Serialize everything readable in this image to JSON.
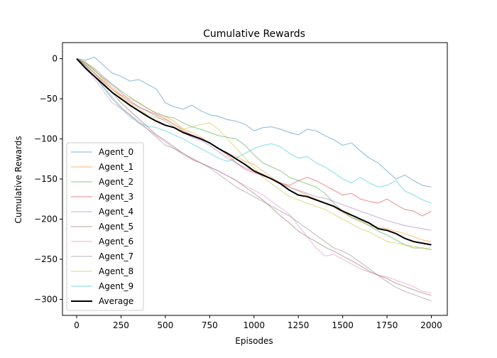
{
  "chart_data": {
    "type": "line",
    "title": "Cumulative Rewards",
    "xlabel": "Episodes",
    "ylabel": "Cumulative Rewards",
    "xlim": [
      -80,
      2090
    ],
    "ylim": [
      -320,
      20
    ],
    "xticks": [
      0,
      250,
      500,
      750,
      1000,
      1250,
      1500,
      1750,
      2000
    ],
    "yticks": [
      0,
      -50,
      -100,
      -150,
      -200,
      -250,
      -300
    ],
    "xtick_labels": [
      "0",
      "250",
      "500",
      "750",
      "1000",
      "1250",
      "1500",
      "1750",
      "2000"
    ],
    "ytick_labels": [
      "0",
      "−50",
      "−100",
      "−150",
      "−200",
      "−250",
      "−300"
    ],
    "legend_position": "lower-left",
    "grid": false,
    "series": [
      {
        "name": "Agent_0",
        "color": "#1f77b4",
        "x": [
          0,
          50,
          100,
          150,
          200,
          250,
          300,
          350,
          400,
          450,
          500,
          550,
          600,
          650,
          700,
          750,
          800,
          850,
          900,
          950,
          1000,
          1050,
          1100,
          1150,
          1200,
          1250,
          1300,
          1350,
          1400,
          1450,
          1500,
          1550,
          1600,
          1650,
          1700,
          1750,
          1800,
          1850,
          1900,
          1950,
          2000
        ],
        "y": [
          0,
          -2,
          2,
          -8,
          -18,
          -22,
          -28,
          -26,
          -32,
          -38,
          -55,
          -60,
          -63,
          -58,
          -65,
          -70,
          -72,
          -76,
          -78,
          -82,
          -90,
          -86,
          -85,
          -88,
          -92,
          -95,
          -88,
          -90,
          -96,
          -101,
          -108,
          -105,
          -115,
          -124,
          -130,
          -140,
          -150,
          -145,
          -152,
          -158,
          -160
        ]
      },
      {
        "name": "Agent_1",
        "color": "#ff7f0e",
        "x": [
          0,
          50,
          100,
          150,
          200,
          250,
          300,
          350,
          400,
          450,
          500,
          550,
          600,
          650,
          700,
          750,
          800,
          850,
          900,
          950,
          1000,
          1050,
          1100,
          1150,
          1200,
          1250,
          1300,
          1350,
          1400,
          1450,
          1500,
          1550,
          1600,
          1650,
          1700,
          1750,
          1800,
          1850,
          1900,
          1950,
          2000
        ],
        "y": [
          0,
          -5,
          -14,
          -25,
          -35,
          -45,
          -50,
          -55,
          -62,
          -68,
          -72,
          -78,
          -88,
          -92,
          -98,
          -105,
          -112,
          -118,
          -122,
          -128,
          -132,
          -140,
          -148,
          -155,
          -160,
          -165,
          -170,
          -175,
          -180,
          -185,
          -192,
          -198,
          -203,
          -208,
          -210,
          -212,
          -215,
          -218,
          -222,
          -226,
          -228
        ]
      },
      {
        "name": "Agent_2",
        "color": "#2ca02c",
        "x": [
          0,
          50,
          100,
          150,
          200,
          250,
          300,
          350,
          400,
          450,
          500,
          550,
          600,
          650,
          700,
          750,
          800,
          850,
          900,
          950,
          1000,
          1050,
          1100,
          1150,
          1200,
          1250,
          1300,
          1350,
          1400,
          1450,
          1500,
          1550,
          1600,
          1650,
          1700,
          1750,
          1800,
          1850,
          1900,
          1950,
          2000
        ],
        "y": [
          0,
          -6,
          -15,
          -24,
          -32,
          -40,
          -48,
          -55,
          -62,
          -68,
          -72,
          -74,
          -80,
          -85,
          -88,
          -92,
          -96,
          -98,
          -100,
          -108,
          -120,
          -130,
          -135,
          -140,
          -148,
          -152,
          -156,
          -160,
          -168,
          -180,
          -190,
          -198,
          -202,
          -208,
          -215,
          -220,
          -226,
          -232,
          -236,
          -236,
          -238
        ]
      },
      {
        "name": "Agent_3",
        "color": "#d62728",
        "x": [
          0,
          50,
          100,
          150,
          200,
          250,
          300,
          350,
          400,
          450,
          500,
          550,
          600,
          650,
          700,
          750,
          800,
          850,
          900,
          950,
          1000,
          1050,
          1100,
          1150,
          1200,
          1250,
          1300,
          1350,
          1400,
          1450,
          1500,
          1550,
          1600,
          1650,
          1700,
          1750,
          1800,
          1850,
          1900,
          1950,
          2000
        ],
        "y": [
          0,
          -8,
          -18,
          -28,
          -38,
          -46,
          -54,
          -60,
          -65,
          -70,
          -75,
          -82,
          -90,
          -95,
          -100,
          -105,
          -112,
          -120,
          -130,
          -138,
          -142,
          -146,
          -150,
          -155,
          -158,
          -152,
          -148,
          -152,
          -158,
          -164,
          -170,
          -168,
          -175,
          -178,
          -180,
          -175,
          -182,
          -188,
          -190,
          -196,
          -190
        ]
      },
      {
        "name": "Agent_4",
        "color": "#9467bd",
        "x": [
          0,
          50,
          100,
          150,
          200,
          250,
          300,
          350,
          400,
          450,
          500,
          550,
          600,
          650,
          700,
          750,
          800,
          850,
          900,
          950,
          1000,
          1050,
          1100,
          1150,
          1200,
          1250,
          1300,
          1350,
          1400,
          1450,
          1500,
          1550,
          1600,
          1650,
          1700,
          1750,
          1800,
          1850,
          1900,
          1950,
          2000
        ],
        "y": [
          0,
          -5,
          -12,
          -22,
          -32,
          -42,
          -52,
          -60,
          -66,
          -72,
          -78,
          -85,
          -92,
          -98,
          -102,
          -108,
          -116,
          -124,
          -130,
          -136,
          -140,
          -144,
          -150,
          -156,
          -160,
          -164,
          -168,
          -172,
          -174,
          -178,
          -182,
          -186,
          -190,
          -194,
          -198,
          -202,
          -205,
          -208,
          -210,
          -212,
          -214
        ]
      },
      {
        "name": "Agent_5",
        "color": "#8c564b",
        "x": [
          0,
          50,
          100,
          150,
          200,
          250,
          300,
          350,
          400,
          450,
          500,
          550,
          600,
          650,
          700,
          750,
          800,
          850,
          900,
          950,
          1000,
          1050,
          1100,
          1150,
          1200,
          1250,
          1300,
          1350,
          1400,
          1450,
          1500,
          1550,
          1600,
          1650,
          1700,
          1750,
          1800,
          1850,
          1900,
          1950,
          2000
        ],
        "y": [
          0,
          -8,
          -18,
          -30,
          -42,
          -55,
          -65,
          -75,
          -85,
          -95,
          -102,
          -110,
          -118,
          -125,
          -130,
          -135,
          -140,
          -146,
          -152,
          -160,
          -168,
          -176,
          -186,
          -196,
          -205,
          -215,
          -222,
          -228,
          -235,
          -240,
          -246,
          -252,
          -258,
          -265,
          -270,
          -274,
          -280,
          -284,
          -288,
          -292,
          -295
        ]
      },
      {
        "name": "Agent_6",
        "color": "#e377c2",
        "x": [
          0,
          50,
          100,
          150,
          200,
          250,
          300,
          350,
          400,
          450,
          500,
          550,
          600,
          650,
          700,
          750,
          800,
          850,
          900,
          950,
          1000,
          1050,
          1100,
          1150,
          1200,
          1250,
          1300,
          1350,
          1400,
          1450,
          1500,
          1550,
          1600,
          1650,
          1700,
          1750,
          1800,
          1850,
          1900,
          1950,
          2000
        ],
        "y": [
          0,
          -12,
          -25,
          -40,
          -55,
          -62,
          -70,
          -78,
          -88,
          -96,
          -104,
          -112,
          -120,
          -126,
          -130,
          -135,
          -140,
          -146,
          -152,
          -158,
          -164,
          -170,
          -178,
          -186,
          -194,
          -208,
          -222,
          -236,
          -246,
          -244,
          -250,
          -256,
          -262,
          -266,
          -270,
          -272,
          -276,
          -280,
          -284,
          -290,
          -292
        ]
      },
      {
        "name": "Agent_7",
        "color": "#7f7f7f",
        "x": [
          0,
          50,
          100,
          150,
          200,
          250,
          300,
          350,
          400,
          450,
          500,
          550,
          600,
          650,
          700,
          750,
          800,
          850,
          900,
          950,
          1000,
          1050,
          1100,
          1150,
          1200,
          1250,
          1300,
          1350,
          1400,
          1450,
          1500,
          1550,
          1600,
          1650,
          1700,
          1750,
          1800,
          1850,
          1900,
          1950,
          2000
        ],
        "y": [
          0,
          -10,
          -22,
          -35,
          -48,
          -60,
          -70,
          -80,
          -88,
          -98,
          -108,
          -112,
          -118,
          -124,
          -130,
          -136,
          -144,
          -152,
          -160,
          -166,
          -172,
          -178,
          -184,
          -190,
          -196,
          -204,
          -212,
          -220,
          -228,
          -236,
          -240,
          -246,
          -254,
          -262,
          -270,
          -278,
          -285,
          -290,
          -294,
          -298,
          -302
        ]
      },
      {
        "name": "Agent_8",
        "color": "#bcbd22",
        "x": [
          0,
          50,
          100,
          150,
          200,
          250,
          300,
          350,
          400,
          450,
          500,
          550,
          600,
          650,
          700,
          750,
          800,
          850,
          900,
          950,
          1000,
          1050,
          1100,
          1150,
          1200,
          1250,
          1300,
          1350,
          1400,
          1450,
          1500,
          1550,
          1600,
          1650,
          1700,
          1750,
          1800,
          1850,
          1900,
          1950,
          2000
        ],
        "y": [
          0,
          -4,
          -14,
          -26,
          -38,
          -48,
          -56,
          -62,
          -70,
          -74,
          -76,
          -82,
          -88,
          -85,
          -82,
          -80,
          -88,
          -100,
          -112,
          -124,
          -136,
          -148,
          -156,
          -164,
          -172,
          -176,
          -180,
          -184,
          -188,
          -194,
          -200,
          -206,
          -212,
          -216,
          -222,
          -228,
          -230,
          -232,
          -234,
          -236,
          -238
        ]
      },
      {
        "name": "Agent_9",
        "color": "#17becf",
        "x": [
          0,
          50,
          100,
          150,
          200,
          250,
          300,
          350,
          400,
          450,
          500,
          550,
          600,
          650,
          700,
          750,
          800,
          850,
          900,
          950,
          1000,
          1050,
          1100,
          1150,
          1200,
          1250,
          1300,
          1350,
          1400,
          1450,
          1500,
          1550,
          1600,
          1650,
          1700,
          1750,
          1800,
          1850,
          1900,
          1950,
          2000
        ],
        "y": [
          0,
          -10,
          -22,
          -36,
          -50,
          -62,
          -72,
          -80,
          -84,
          -86,
          -90,
          -95,
          -100,
          -106,
          -112,
          -118,
          -124,
          -128,
          -124,
          -118,
          -112,
          -108,
          -106,
          -110,
          -118,
          -124,
          -122,
          -130,
          -135,
          -142,
          -150,
          -155,
          -148,
          -155,
          -160,
          -158,
          -152,
          -165,
          -170,
          -176,
          -180
        ]
      }
    ],
    "average": {
      "name": "Average",
      "color": "#000000",
      "x": [
        0,
        50,
        100,
        150,
        200,
        250,
        300,
        350,
        400,
        450,
        500,
        550,
        600,
        650,
        700,
        750,
        800,
        850,
        900,
        950,
        1000,
        1050,
        1100,
        1150,
        1200,
        1250,
        1300,
        1350,
        1400,
        1450,
        1500,
        1550,
        1600,
        1650,
        1700,
        1750,
        1800,
        1850,
        1900,
        1950,
        2000
      ],
      "y": [
        0,
        -12,
        -22,
        -32,
        -42,
        -50,
        -58,
        -65,
        -72,
        -78,
        -83,
        -86,
        -92,
        -96,
        -100,
        -105,
        -112,
        -118,
        -125,
        -132,
        -140,
        -145,
        -150,
        -156,
        -164,
        -170,
        -172,
        -176,
        -180,
        -184,
        -190,
        -195,
        -200,
        -205,
        -212,
        -214,
        -218,
        -224,
        -228,
        -230,
        -232
      ]
    }
  }
}
